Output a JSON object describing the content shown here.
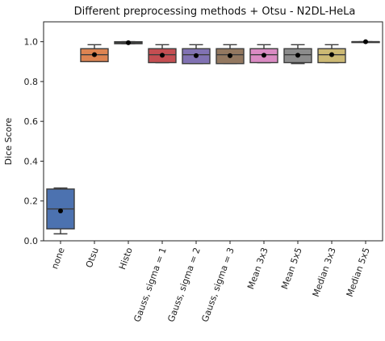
{
  "chart_data": {
    "type": "box",
    "title": "Different preprocessing methods + Otsu - N2DL-HeLa",
    "xlabel": "",
    "ylabel": "Dice Score",
    "ylim": [
      0.0,
      1.1
    ],
    "yticks": [
      "0.0",
      "0.2",
      "0.4",
      "0.6",
      "0.8",
      "1.0"
    ],
    "grid": false,
    "categories": [
      "none",
      "Otsu",
      "Histo",
      "Gauss, sigma = 1",
      "Gauss, sigma = 2",
      "Gauss, sigma = 3",
      "Mean 3x3",
      "Mean 5x5",
      "Median 3x3",
      "Median 5x5"
    ],
    "boxes": [
      {
        "whisker_low": 0.035,
        "q1": 0.06,
        "median": 0.16,
        "q3": 0.26,
        "whisker_high": 0.265,
        "mean": 0.15,
        "color": "#4c72b0"
      },
      {
        "whisker_low": 0.9,
        "q1": 0.9,
        "median": 0.935,
        "q3": 0.965,
        "whisker_high": 0.985,
        "mean": 0.935,
        "color": "#dd8452"
      },
      {
        "whisker_low": 0.99,
        "q1": 0.99,
        "median": 0.995,
        "q3": 1.0,
        "whisker_high": 1.0,
        "mean": 0.995,
        "color": "#55a868"
      },
      {
        "whisker_low": 0.895,
        "q1": 0.895,
        "median": 0.935,
        "q3": 0.965,
        "whisker_high": 0.985,
        "mean": 0.932,
        "color": "#c44e52"
      },
      {
        "whisker_low": 0.89,
        "q1": 0.89,
        "median": 0.935,
        "q3": 0.965,
        "whisker_high": 0.985,
        "mean": 0.93,
        "color": "#8172b3"
      },
      {
        "whisker_low": 0.89,
        "q1": 0.89,
        "median": 0.935,
        "q3": 0.965,
        "whisker_high": 0.985,
        "mean": 0.93,
        "color": "#937860"
      },
      {
        "whisker_low": 0.895,
        "q1": 0.895,
        "median": 0.935,
        "q3": 0.965,
        "whisker_high": 0.985,
        "mean": 0.932,
        "color": "#da8bc3"
      },
      {
        "whisker_low": 0.89,
        "q1": 0.895,
        "median": 0.935,
        "q3": 0.965,
        "whisker_high": 0.985,
        "mean": 0.932,
        "color": "#8c8c8c"
      },
      {
        "whisker_low": 0.895,
        "q1": 0.895,
        "median": 0.935,
        "q3": 0.965,
        "whisker_high": 0.985,
        "mean": 0.935,
        "color": "#ccb974"
      },
      {
        "whisker_low": 0.998,
        "q1": 0.998,
        "median": 1.0,
        "q3": 1.0,
        "whisker_high": 1.0,
        "mean": 1.0,
        "color": "#64b5cd"
      }
    ]
  }
}
